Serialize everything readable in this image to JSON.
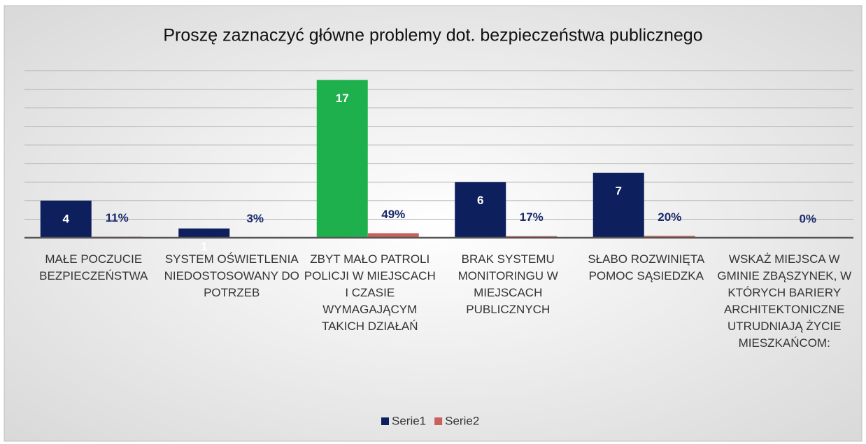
{
  "chart_data": {
    "type": "bar",
    "title": "Proszę zaznaczyć główne problemy dot. bezpieczeństwa publicznego",
    "categories": [
      "MAŁE POCZUCIE BEZPIECZEŃSTWA",
      "SYSTEM OŚWIETLENIA NIEDOSTOSOWANY DO POTRZEB",
      "ZBYT MAŁO PATROLI POLICJI W MIEJSCACH I CZASIE WYMAGAJĄCYM TAKICH DZIAŁAŃ",
      "BRAK SYSTEMU MONITORINGU W MIEJSCACH PUBLICZNYCH",
      "SŁABO ROZWINIĘTA POMOC SĄSIEDZKA",
      "WSKAŻ MIEJSCA W GMINIE ZBĄSZYNEK, W KTÓRYCH BARIERY ARCHITEKTONICZNE UTRUDNIAJĄ ŻYCIE MIESZKAŃCOM:"
    ],
    "series": [
      {
        "name": "Serie1",
        "color": "#0d1f5c",
        "colors": [
          "#0d1f5c",
          "#0d1f5c",
          "#1fb04e",
          "#0d1f5c",
          "#0d1f5c",
          "#0d1f5c"
        ],
        "values": [
          4,
          1,
          17,
          6,
          7,
          null
        ]
      },
      {
        "name": "Serie2",
        "color": "#c9605c",
        "values": [
          0.11,
          0.03,
          0.49,
          0.17,
          0.2,
          0
        ],
        "value_labels": [
          "11%",
          "3%",
          "49%",
          "17%",
          "20%",
          "0%"
        ]
      }
    ],
    "ylim": [
      0,
      18
    ],
    "yticks": [
      0,
      2,
      4,
      6,
      8,
      10,
      12,
      14,
      16,
      18
    ],
    "grid": true,
    "legend": "bottom"
  }
}
